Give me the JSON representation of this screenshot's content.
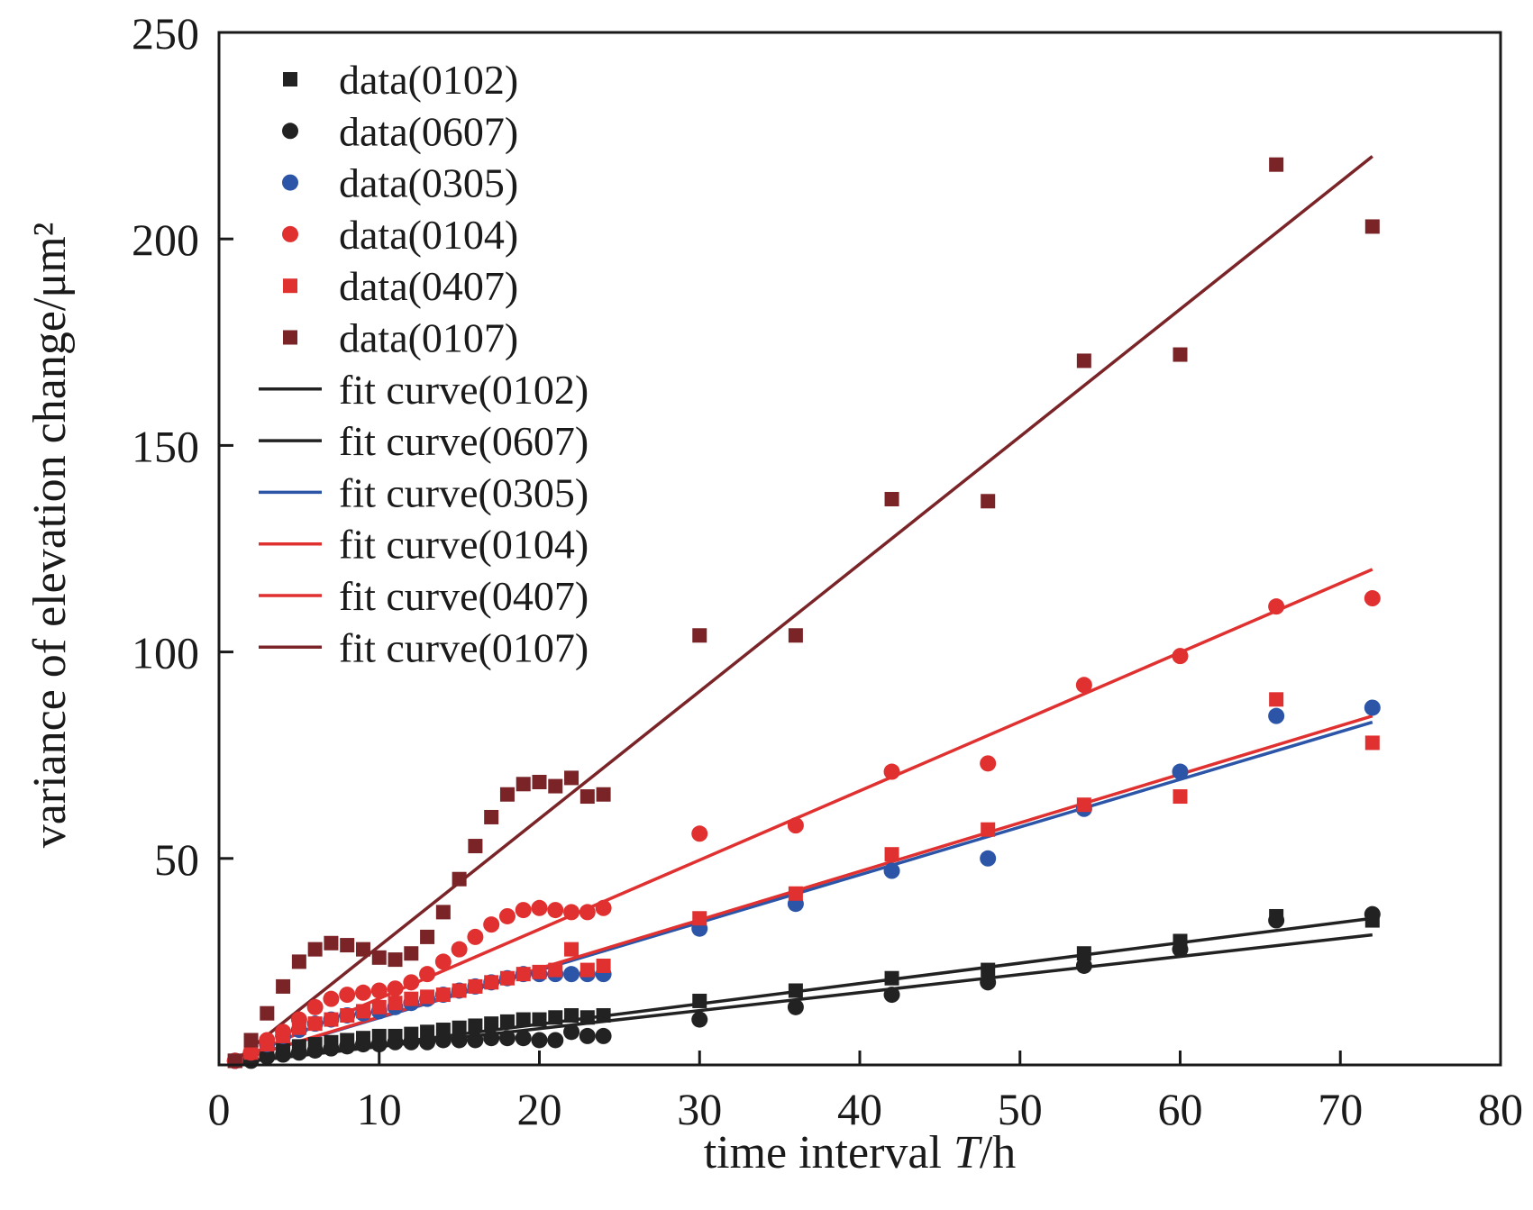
{
  "chart_data": {
    "type": "scatter",
    "title": "",
    "xlabel_main": "time interval ",
    "xlabel_var": "T",
    "xlabel_unit": "/h",
    "ylabel": "variance of elevation change/μm²",
    "xlim": [
      0,
      80
    ],
    "ylim": [
      0,
      250
    ],
    "x_ticks": [
      0,
      10,
      20,
      30,
      40,
      50,
      60,
      70,
      80
    ],
    "y_ticks": [
      50,
      100,
      150,
      200,
      250
    ],
    "grid": false,
    "legend_position": "top-left",
    "series": [
      {
        "name": "data(0102)",
        "kind": "points",
        "marker": "square",
        "color": "#222222",
        "x": [
          1,
          2,
          3,
          4,
          5,
          6,
          7,
          8,
          9,
          10,
          11,
          12,
          13,
          14,
          15,
          16,
          17,
          18,
          19,
          20,
          21,
          22,
          23,
          24,
          30,
          36,
          42,
          48,
          54,
          60,
          66,
          72
        ],
        "y": [
          1,
          2,
          3,
          4,
          4.5,
          5,
          5.5,
          6,
          6.5,
          7,
          7,
          7.5,
          8,
          8.5,
          9,
          9.5,
          10,
          10.5,
          11,
          11,
          11.5,
          12,
          11.5,
          12,
          15.5,
          18,
          21,
          23,
          27,
          30,
          36,
          35
        ]
      },
      {
        "name": "data(0607)",
        "kind": "points",
        "marker": "circle",
        "color": "#222222",
        "x": [
          1,
          2,
          3,
          4,
          5,
          6,
          7,
          8,
          9,
          10,
          11,
          12,
          13,
          14,
          15,
          16,
          17,
          18,
          19,
          20,
          21,
          22,
          23,
          24,
          30,
          36,
          42,
          48,
          54,
          60,
          66,
          72
        ],
        "y": [
          1,
          1,
          2,
          2.5,
          3,
          3.5,
          4,
          4.5,
          5,
          5,
          5.5,
          5.5,
          5.5,
          6,
          6,
          6,
          6.5,
          6.5,
          6.5,
          6,
          6,
          8,
          7,
          7,
          11,
          14,
          17,
          20,
          24,
          28,
          35,
          36.5
        ]
      },
      {
        "name": "data(0305)",
        "kind": "points",
        "marker": "circle",
        "color": "#2c55a8",
        "x": [
          1,
          2,
          3,
          4,
          5,
          6,
          7,
          8,
          9,
          10,
          11,
          12,
          13,
          14,
          15,
          16,
          17,
          18,
          19,
          20,
          21,
          22,
          23,
          24,
          30,
          36,
          42,
          48,
          54,
          60,
          66,
          72
        ],
        "y": [
          1,
          3,
          5,
          7,
          8.5,
          10,
          11,
          12,
          12.5,
          13,
          14,
          15,
          16,
          17,
          18,
          19,
          20,
          21,
          22,
          22,
          22,
          22,
          22,
          22,
          33,
          39,
          47,
          50,
          62,
          71,
          84.5,
          86.5
        ]
      },
      {
        "name": "data(0104)",
        "kind": "points",
        "marker": "circle",
        "color": "#e03030",
        "x": [
          1,
          2,
          3,
          4,
          5,
          6,
          7,
          8,
          9,
          10,
          11,
          12,
          13,
          14,
          15,
          16,
          17,
          18,
          19,
          20,
          21,
          22,
          23,
          24,
          30,
          36,
          42,
          48,
          54,
          60,
          66,
          72
        ],
        "y": [
          1,
          3,
          6,
          8,
          11,
          14,
          16,
          17,
          17.5,
          18,
          18.5,
          20,
          22,
          25,
          28,
          31,
          34,
          36,
          37.5,
          38,
          37.5,
          37,
          37,
          38,
          56,
          58,
          71,
          73,
          92,
          99,
          111,
          113
        ]
      },
      {
        "name": "data(0407)",
        "kind": "points",
        "marker": "square",
        "color": "#e03030",
        "x": [
          1,
          2,
          3,
          4,
          5,
          6,
          7,
          8,
          9,
          10,
          11,
          12,
          13,
          14,
          15,
          16,
          17,
          18,
          19,
          20,
          21,
          22,
          23,
          24,
          30,
          36,
          42,
          48,
          54,
          60,
          66,
          72
        ],
        "y": [
          1,
          3,
          5,
          7,
          9,
          10,
          11,
          12,
          13,
          14,
          15,
          16,
          16.5,
          17,
          18,
          19,
          20,
          21,
          22,
          22.5,
          23,
          28,
          23,
          24,
          35.5,
          41.5,
          51,
          57,
          63,
          65,
          88.5,
          78
        ]
      },
      {
        "name": "data(0107)",
        "kind": "points",
        "marker": "square",
        "color": "#7a2428",
        "x": [
          1,
          2,
          3,
          4,
          5,
          6,
          7,
          8,
          9,
          10,
          11,
          12,
          13,
          14,
          15,
          16,
          17,
          18,
          19,
          20,
          21,
          22,
          23,
          24,
          30,
          36,
          42,
          48,
          54,
          60,
          66,
          72
        ],
        "y": [
          1,
          6,
          12.5,
          19,
          25,
          28,
          29.5,
          29,
          28,
          26,
          25.5,
          27,
          31,
          37,
          45,
          53,
          60,
          65.5,
          68,
          68.5,
          67.5,
          69.5,
          65,
          65.5,
          104,
          104,
          137,
          136.5,
          170.5,
          172,
          218,
          203
        ]
      },
      {
        "name": "fit curve(0102)",
        "kind": "line",
        "color": "#222222",
        "x": [
          1,
          72
        ],
        "y": [
          0.5,
          35.5
        ]
      },
      {
        "name": "fit curve(0607)",
        "kind": "line",
        "color": "#222222",
        "x": [
          1,
          72
        ],
        "y": [
          0.5,
          31.5
        ]
      },
      {
        "name": "fit curve(0305)",
        "kind": "line",
        "color": "#2c55a8",
        "x": [
          1,
          72
        ],
        "y": [
          1,
          83
        ]
      },
      {
        "name": "fit curve(0104)",
        "kind": "line",
        "color": "#e03030",
        "x": [
          1,
          72
        ],
        "y": [
          1,
          120
        ]
      },
      {
        "name": "fit curve(0407)",
        "kind": "line",
        "color": "#e03030",
        "x": [
          1,
          72
        ],
        "y": [
          1,
          84.5
        ]
      },
      {
        "name": "fit curve(0107)",
        "kind": "line",
        "color": "#7a2428",
        "x": [
          1,
          72
        ],
        "y": [
          1,
          220
        ]
      }
    ]
  }
}
